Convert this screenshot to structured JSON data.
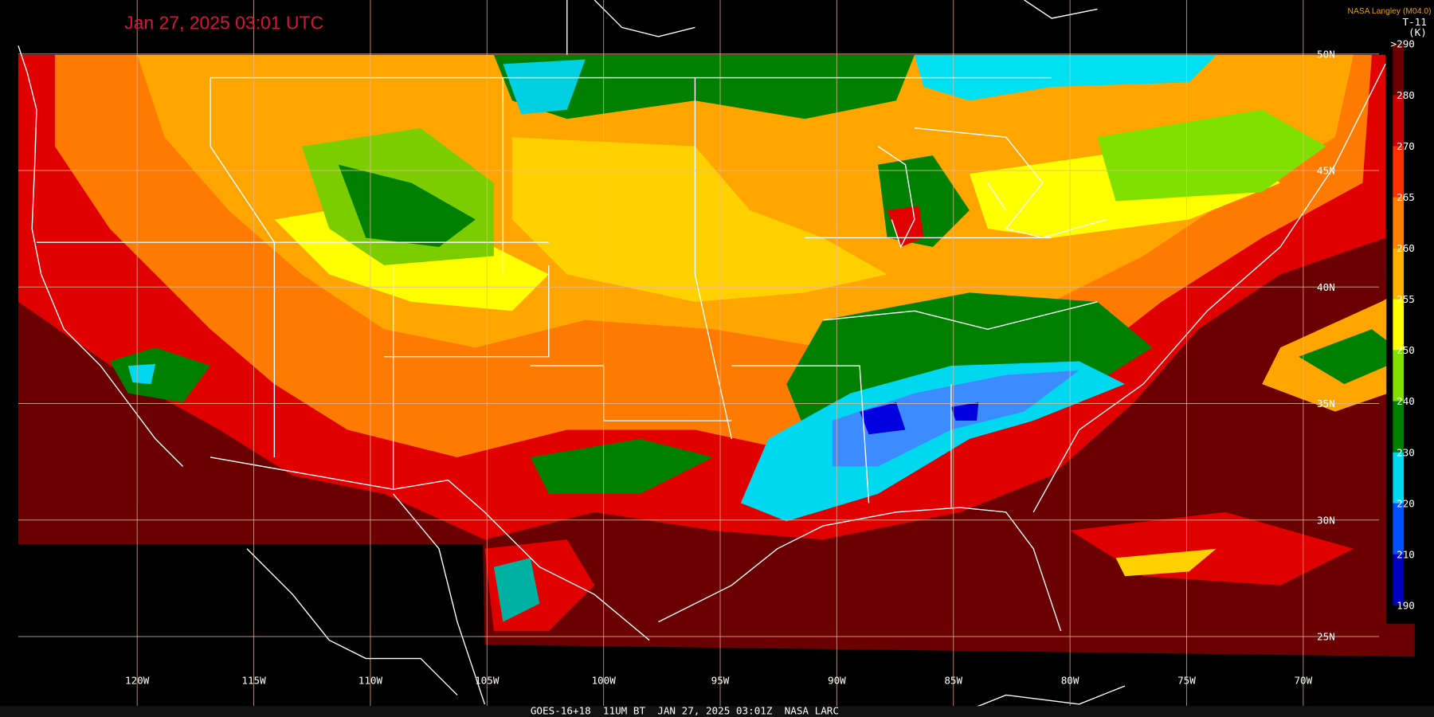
{
  "title": "Jan 27, 2025 03:01 UTC",
  "credit": "NASA Langley (M04.0)",
  "colorbar": {
    "title": "T-11",
    "unit": "(K)",
    "ticks": [
      ">290",
      "280",
      "270",
      "265",
      "260",
      "255",
      "250",
      "240",
      "230",
      "220",
      "210",
      "190"
    ]
  },
  "longitudes": [
    "120W",
    "115W",
    "110W",
    "105W",
    "100W",
    "95W",
    "90W",
    "85W",
    "80W",
    "75W",
    "70W"
  ],
  "latitudes": [
    "50N",
    "45N",
    "40N",
    "35N",
    "30N",
    "25N"
  ],
  "footer": "GOES-16+18  11UM BT  JAN 27, 2025 03:01Z  NASA LARC"
}
